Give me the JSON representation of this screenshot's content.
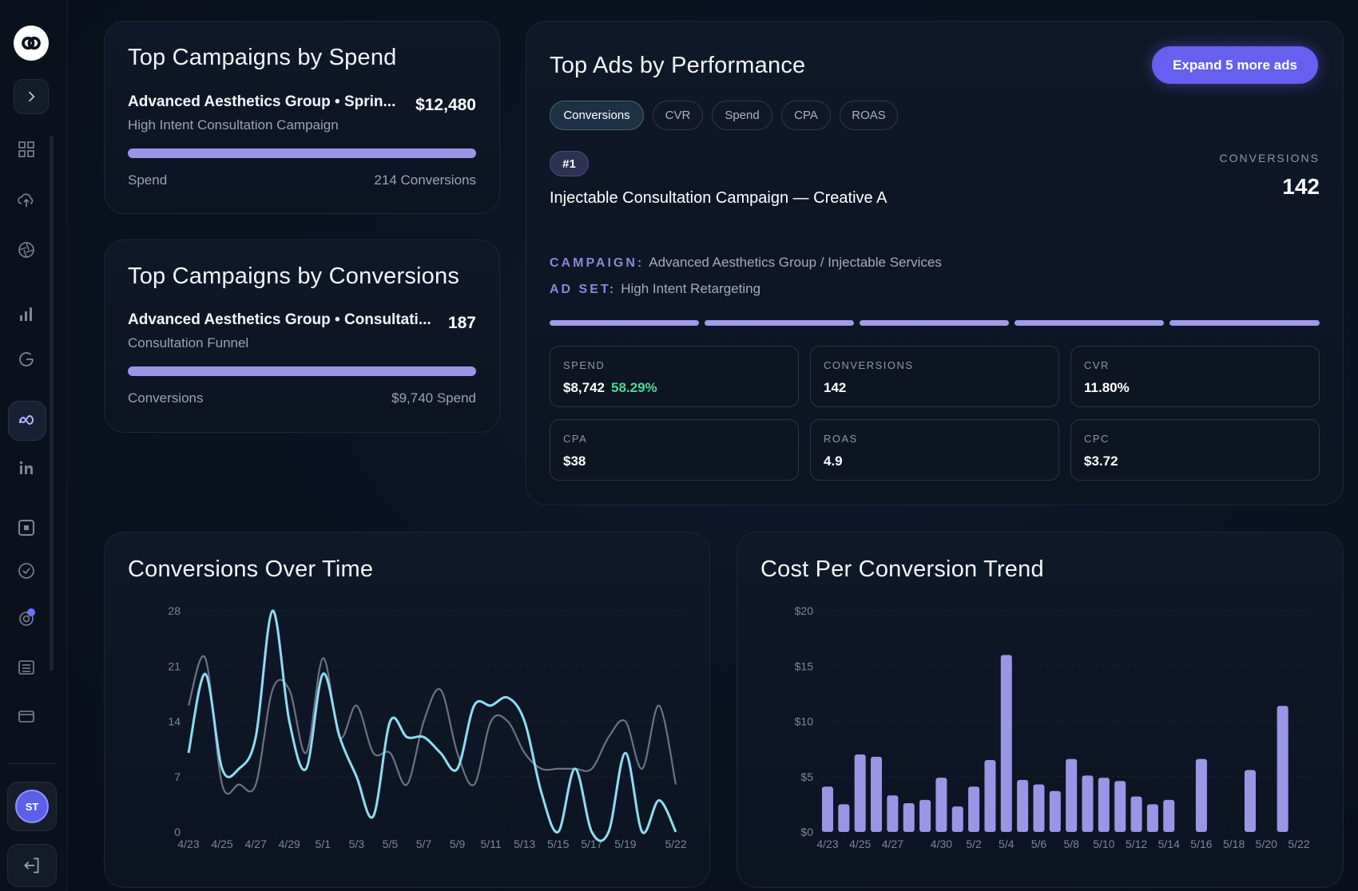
{
  "sidebar": {
    "avatar_initials": "ST",
    "icons": [
      "logo-icon",
      "chevron-right-icon",
      "grid-icon",
      "cloud-upload-icon",
      "aperture-icon",
      "bar-chart-icon",
      "google-icon",
      "meta-icon",
      "linkedin-icon",
      "square-icon",
      "clock-check-icon",
      "settings-icon",
      "list-icon",
      "card-icon",
      "logout-icon"
    ]
  },
  "top_spend": {
    "title": "Top Campaigns by Spend",
    "name": "Advanced Aesthetics Group • Sprin...",
    "sub": "High Intent Consultation Campaign",
    "value": "$12,480",
    "foot_left": "Spend",
    "foot_right": "214 Conversions",
    "progress": 1.0
  },
  "top_conv": {
    "title": "Top Campaigns by Conversions",
    "name": "Advanced Aesthetics Group • Consultati...",
    "sub": "Consultation Funnel",
    "value": "187",
    "foot_left": "Conversions",
    "foot_right": "$9,740 Spend",
    "progress": 1.0
  },
  "top_ads": {
    "title": "Top Ads by Performance",
    "expand_label": "Expand 5 more ads",
    "chips": [
      "Conversions",
      "CVR",
      "Spend",
      "CPA",
      "ROAS"
    ],
    "active_chip": "Conversions",
    "rank": "#1",
    "ad_name": "Injectable Consultation Campaign — Creative A",
    "metric_label": "CONVERSIONS",
    "metric_value": "142",
    "campaign_key": "CAMPAIGN:",
    "campaign_value": "Advanced Aesthetics Group / Injectable Services",
    "adset_key": "AD SET:",
    "adset_value": "High Intent Retargeting",
    "stats": [
      {
        "label": "SPEND",
        "value": "$8,742",
        "delta": "58.29%"
      },
      {
        "label": "CONVERSIONS",
        "value": "142"
      },
      {
        "label": "CVR",
        "value": "11.80%"
      },
      {
        "label": "CPA",
        "value": "$38"
      },
      {
        "label": "ROAS",
        "value": "4.9"
      },
      {
        "label": "CPC",
        "value": "$3.72"
      }
    ]
  },
  "colors": {
    "accent": "#6660f0",
    "bar": "#9b95e6",
    "line_primary": "#8fdcf3",
    "line_secondary": "#6b7280",
    "positive": "#4ed894"
  },
  "chart_data": [
    {
      "type": "line",
      "title": "Conversions Over Time",
      "x_ticks": [
        "4/23",
        "4/25",
        "4/27",
        "4/29",
        "5/1",
        "5/3",
        "5/5",
        "5/7",
        "5/9",
        "5/11",
        "5/13",
        "5/15",
        "5/17",
        "5/19",
        "5/22"
      ],
      "y_ticks": [
        0,
        7,
        14,
        21,
        28
      ],
      "ylim": [
        0,
        28
      ],
      "x": [
        "4/23",
        "4/24",
        "4/25",
        "4/26",
        "4/27",
        "4/28",
        "4/29",
        "4/30",
        "5/1",
        "5/2",
        "5/3",
        "5/4",
        "5/5",
        "5/6",
        "5/7",
        "5/8",
        "5/9",
        "5/10",
        "5/11",
        "5/12",
        "5/13",
        "5/14",
        "5/15",
        "5/16",
        "5/17",
        "5/18",
        "5/19",
        "5/20",
        "5/21",
        "5/22"
      ],
      "series": [
        {
          "values": [
            10,
            20,
            8,
            8,
            12,
            28,
            14,
            8,
            20,
            12,
            7,
            2,
            14,
            12,
            12,
            10,
            8,
            16,
            16,
            17,
            14,
            5,
            0,
            8,
            0,
            0,
            10,
            0,
            4,
            0
          ]
        },
        {
          "values": [
            16,
            22,
            6,
            6,
            6,
            18,
            18,
            10,
            22,
            12,
            16,
            10,
            10,
            6,
            14,
            18,
            10,
            6,
            14,
            14,
            10,
            8,
            8,
            8,
            8,
            12,
            14,
            8,
            16,
            6
          ]
        }
      ],
      "grid": true
    },
    {
      "type": "bar",
      "title": "Cost Per Conversion Trend",
      "x_ticks": [
        "4/23",
        "4/25",
        "4/27",
        "4/30",
        "5/2",
        "5/4",
        "5/6",
        "5/8",
        "5/10",
        "5/12",
        "5/14",
        "5/16",
        "5/18",
        "5/20",
        "5/22"
      ],
      "y_ticks": [
        "$0",
        "$5",
        "$10",
        "$15",
        "$20"
      ],
      "ylim": [
        0,
        20
      ],
      "categories": [
        "4/23",
        "4/24",
        "4/25",
        "4/26",
        "4/27",
        "4/28",
        "4/29",
        "4/30",
        "5/1",
        "5/2",
        "5/3",
        "5/4",
        "5/5",
        "5/6",
        "5/7",
        "5/8",
        "5/9",
        "5/10",
        "5/11",
        "5/12",
        "5/13",
        "5/14",
        "5/15",
        "5/16",
        "5/17",
        "5/18",
        "5/19",
        "5/20",
        "5/21",
        "5/22"
      ],
      "values": [
        4.1,
        2.5,
        7.0,
        6.8,
        3.3,
        2.6,
        2.9,
        4.9,
        2.3,
        4.1,
        6.5,
        16.0,
        4.7,
        4.3,
        3.7,
        6.6,
        5.1,
        4.9,
        4.6,
        3.2,
        2.5,
        2.9,
        0,
        6.6,
        0,
        0,
        5.6,
        0,
        11.4,
        0
      ],
      "grid": true
    }
  ]
}
